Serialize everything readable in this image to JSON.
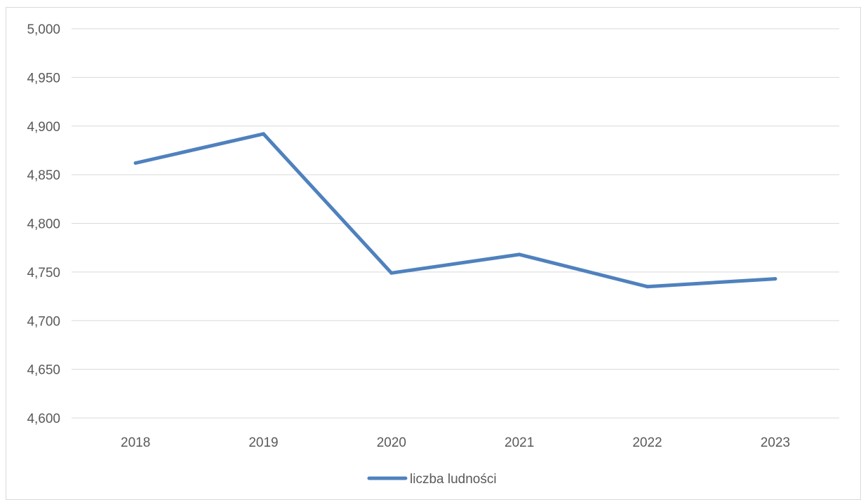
{
  "chart_data": {
    "type": "line",
    "x": [
      "2018",
      "2019",
      "2020",
      "2021",
      "2022",
      "2023"
    ],
    "series": [
      {
        "name": "liczba ludności",
        "values": [
          4862,
          4892,
          4749,
          4768,
          4735,
          4743
        ],
        "color": "#4F81BD"
      }
    ],
    "ylim": [
      4600,
      5000
    ],
    "y_ticks": [
      4600,
      4650,
      4700,
      4750,
      4800,
      4850,
      4900,
      4950,
      5000
    ],
    "y_tick_labels": [
      "4,600",
      "4,650",
      "4,700",
      "4,750",
      "4,800",
      "4,850",
      "4,900",
      "4,950",
      "5,000"
    ],
    "grid": true,
    "legend_position": "bottom"
  }
}
